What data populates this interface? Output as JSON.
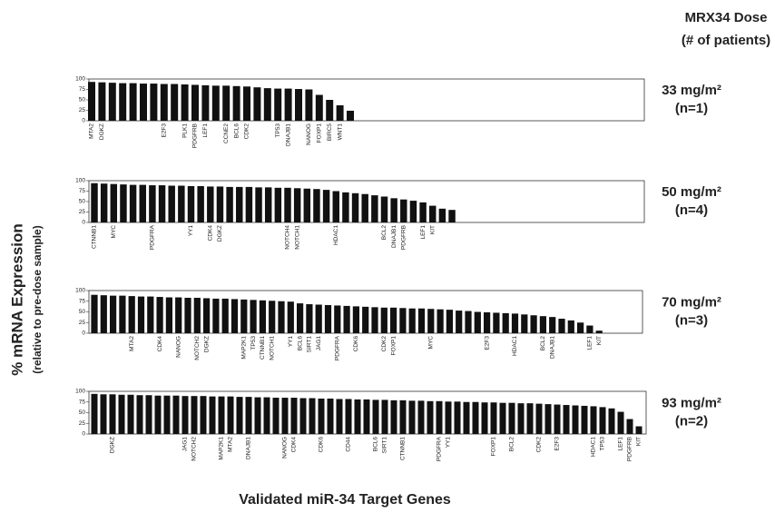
{
  "figure": {
    "header": "MRX34 Dose",
    "subheader": "(# of patients)",
    "y_label": "% mRNA Expression",
    "y_sublabel": "(relative to pre-dose sample)",
    "x_label": "Validated miR-34 Target Genes"
  },
  "chart_data": [
    {
      "type": "bar",
      "dose": "33 mg/m²",
      "patients": "(n=1)",
      "color": "#111111",
      "ylim": [
        0,
        100
      ],
      "yticks": [
        0,
        25,
        50,
        75,
        100
      ],
      "categories": [
        "MTA2",
        "DGKZ",
        null,
        null,
        null,
        null,
        null,
        "E2F3",
        null,
        "PLK1",
        "PDGFRB",
        "LEF1",
        null,
        "CCNE2",
        "BCL6",
        "CDK2",
        null,
        null,
        "TP53",
        "DNAJB1",
        null,
        "NANOG",
        "FOXP1",
        "BIRC5",
        "WNT1",
        null
      ],
      "values": [
        93,
        92,
        91,
        90,
        90,
        89,
        89,
        88,
        88,
        87,
        86,
        85,
        84,
        84,
        83,
        82,
        80,
        78,
        77,
        77,
        76,
        75,
        62,
        50,
        37,
        24
      ]
    },
    {
      "type": "bar",
      "dose": "50 mg/m²",
      "patients": "(n=4)",
      "color": "#111111",
      "ylim": [
        0,
        100
      ],
      "yticks": [
        0,
        25,
        50,
        75,
        100
      ],
      "categories": [
        "CTNNB1",
        null,
        "MYC",
        null,
        null,
        null,
        "PDGFRA",
        null,
        null,
        null,
        "YY1",
        null,
        "CDK4",
        "DGKZ",
        null,
        null,
        null,
        null,
        null,
        null,
        "NOTCH4",
        "NOTCH1",
        null,
        null,
        null,
        "HDAC1",
        null,
        null,
        null,
        null,
        "BCL2",
        "DNAJB1",
        "PDGFRB",
        null,
        "LEF1",
        "KIT",
        null,
        null
      ],
      "values": [
        94,
        93,
        92,
        91,
        90,
        90,
        89,
        89,
        88,
        88,
        87,
        87,
        86,
        86,
        85,
        85,
        85,
        84,
        84,
        83,
        83,
        82,
        81,
        80,
        78,
        75,
        72,
        70,
        68,
        65,
        62,
        58,
        55,
        52,
        48,
        40,
        33,
        30
      ]
    },
    {
      "type": "bar",
      "dose": "70 mg/m²",
      "patients": "(n=3)",
      "color": "#111111",
      "ylim": [
        0,
        100
      ],
      "yticks": [
        0,
        25,
        50,
        75,
        100
      ],
      "categories": [
        null,
        null,
        null,
        null,
        "MTA2",
        null,
        null,
        "CDK4",
        null,
        "NANOG",
        null,
        "NOTCH2",
        "DGKZ",
        null,
        null,
        null,
        "MAP2K1",
        "TP53",
        "CTNNB1",
        "NOTCH1",
        null,
        "YY1",
        "BCL6",
        "SIRT1",
        "JAG1",
        null,
        "PDGFRA",
        null,
        "CDK6",
        null,
        null,
        "CDK2",
        "FOXP1",
        null,
        null,
        null,
        "MYC",
        null,
        null,
        null,
        null,
        null,
        "E2F3",
        null,
        null,
        "HDAC1",
        null,
        null,
        "BCL2",
        "DNAJB1",
        null,
        null,
        null,
        "LEF1",
        "KIT"
      ],
      "values": [
        90,
        89,
        88,
        88,
        87,
        86,
        86,
        85,
        84,
        84,
        83,
        83,
        82,
        81,
        81,
        80,
        79,
        78,
        77,
        76,
        75,
        74,
        70,
        68,
        67,
        66,
        65,
        64,
        63,
        62,
        61,
        60,
        60,
        59,
        58,
        58,
        57,
        56,
        55,
        53,
        52,
        50,
        49,
        48,
        47,
        46,
        44,
        42,
        40,
        38,
        34,
        30,
        25,
        18,
        6
      ]
    },
    {
      "type": "bar",
      "dose": "93 mg/m²",
      "patients": "(n=2)",
      "color": "#111111",
      "ylim": [
        0,
        100
      ],
      "yticks": [
        0,
        25,
        50,
        75,
        100
      ],
      "categories": [
        null,
        null,
        "DGKZ",
        null,
        null,
        null,
        null,
        null,
        null,
        null,
        "JAG1",
        "NOTCH2",
        null,
        null,
        "MAP2K1",
        "MTA2",
        null,
        "DNAJB1",
        null,
        null,
        null,
        "NANOG",
        "CDK4",
        null,
        null,
        "CDK6",
        null,
        null,
        "CD44",
        null,
        null,
        "BCL6",
        "SIRT1",
        null,
        "CTNNB1",
        null,
        null,
        null,
        "PDGFRA",
        "YY1",
        null,
        null,
        null,
        null,
        "FOXP1",
        null,
        "BCL2",
        null,
        null,
        "CDK2",
        null,
        "E2F3",
        null,
        null,
        null,
        "HDAC1",
        "TP53",
        null,
        "LEF1",
        "PDGFRB",
        "KIT"
      ],
      "values": [
        94,
        93,
        93,
        92,
        92,
        91,
        91,
        90,
        90,
        90,
        89,
        89,
        89,
        88,
        88,
        88,
        87,
        87,
        86,
        86,
        85,
        85,
        85,
        84,
        84,
        83,
        83,
        82,
        82,
        81,
        81,
        80,
        80,
        79,
        79,
        78,
        78,
        77,
        77,
        76,
        76,
        75,
        75,
        74,
        74,
        73,
        73,
        72,
        72,
        71,
        70,
        69,
        68,
        67,
        66,
        65,
        63,
        60,
        52,
        35,
        18
      ]
    }
  ]
}
